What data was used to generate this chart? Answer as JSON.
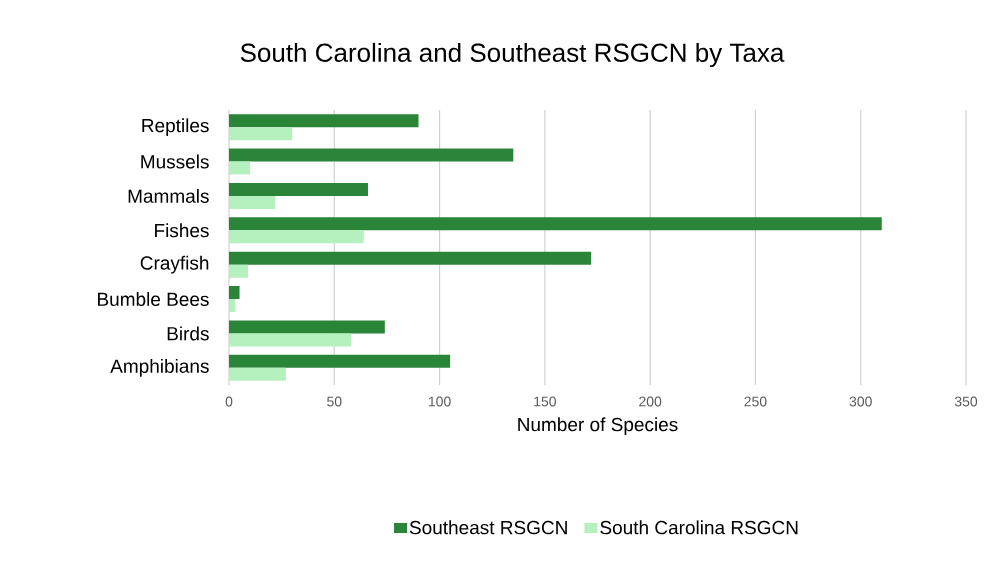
{
  "chart_data": {
    "type": "bar",
    "orientation": "horizontal",
    "title": "South Carolina and Southeast RSGCN by Taxa",
    "xlabel": "Number of Species",
    "categories": [
      "Reptiles",
      "Mussels",
      "Mammals",
      "Fishes",
      "Crayfish",
      "Bumble Bees",
      "Birds",
      "Amphibians"
    ],
    "series": [
      {
        "name": "Southeast RSGCN",
        "color": "#2a8538",
        "values": [
          90,
          135,
          66,
          310,
          172,
          5,
          74,
          105
        ]
      },
      {
        "name": "South Carolina RSGCN",
        "color": "#b5f0bf",
        "values": [
          30,
          10,
          22,
          64,
          9,
          3,
          58,
          27
        ]
      }
    ],
    "xlim": [
      0,
      350
    ],
    "xticks": [
      0,
      50,
      100,
      150,
      200,
      250,
      300,
      350
    ],
    "grid": "x",
    "legend": "bottom"
  }
}
